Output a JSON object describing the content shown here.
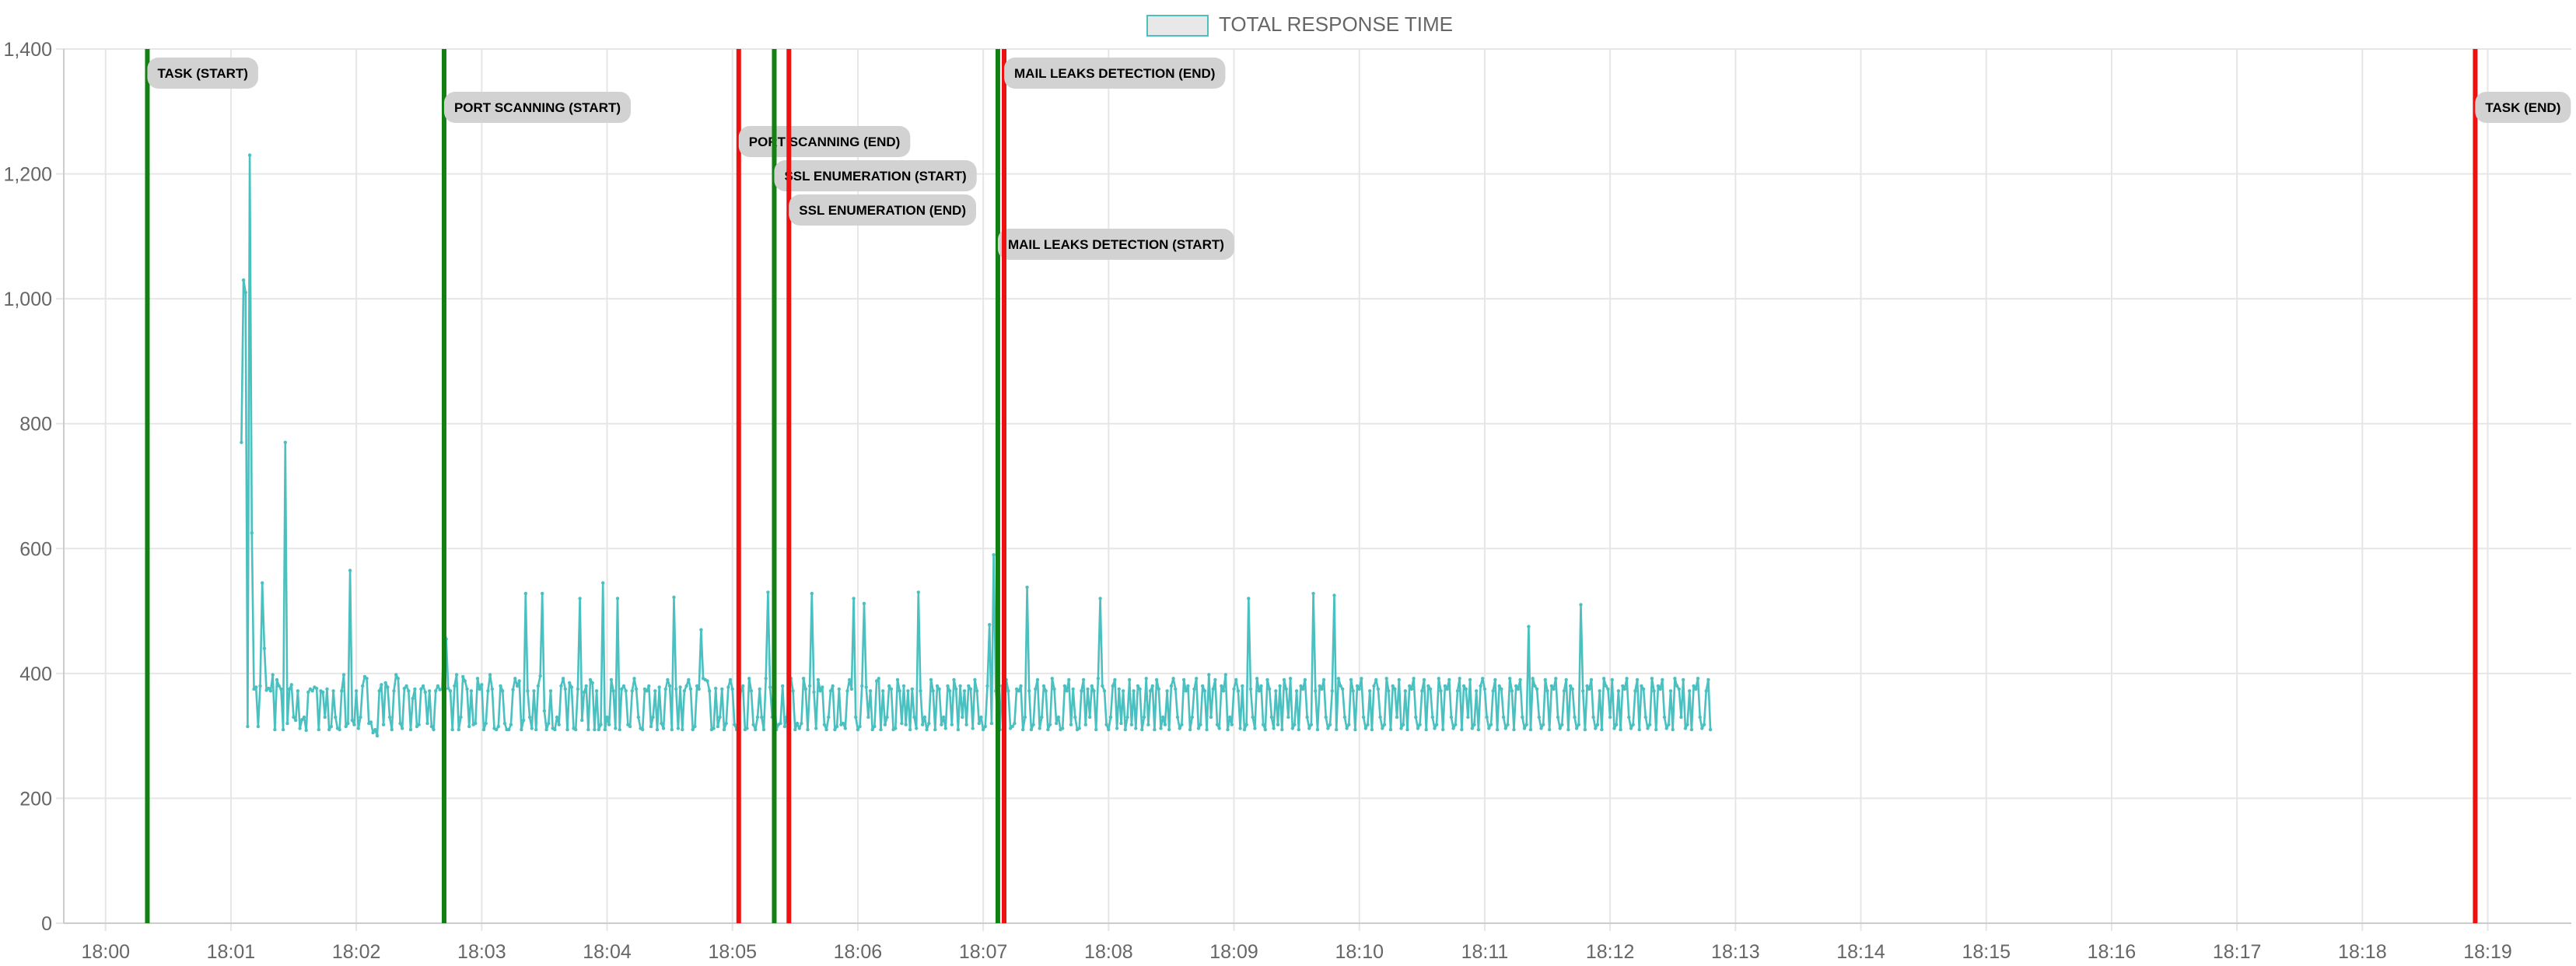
{
  "chart_data": {
    "type": "line",
    "legend": {
      "label": "TOTAL RESPONSE TIME",
      "position": "top-center"
    },
    "colors": {
      "series_line": "#4bc0c0",
      "series_fill": "#e8e8e8",
      "start_marker": "#128012",
      "end_marker": "#ee1111",
      "label_bg": "#d2d2d2",
      "grid": "#e6e6e6"
    },
    "x_axis": {
      "type": "time",
      "range": [
        "17:59:40",
        "18:19:40"
      ],
      "ticks": [
        "18:00",
        "18:01",
        "18:02",
        "18:03",
        "18:04",
        "18:05",
        "18:06",
        "18:07",
        "18:08",
        "18:09",
        "18:10",
        "18:11",
        "18:12",
        "18:13",
        "18:14",
        "18:15",
        "18:16",
        "18:17",
        "18:18",
        "18:19"
      ]
    },
    "y_axis": {
      "range": [
        0,
        1400
      ],
      "ticks": [
        "0",
        "200",
        "400",
        "600",
        "800",
        "1,000",
        "1,200",
        "1,400"
      ]
    },
    "grid": true,
    "events": [
      {
        "label": "TASK (START)",
        "time": "18:00:20",
        "kind": "start"
      },
      {
        "label": "PORT SCANNING (START)",
        "time": "18:02:42",
        "kind": "start"
      },
      {
        "label": "PORT SCANNING (END)",
        "time": "18:05:03",
        "kind": "end"
      },
      {
        "label": "SSL ENUMERATION (START)",
        "time": "18:05:20",
        "kind": "start"
      },
      {
        "label": "SSL ENUMERATION (END)",
        "time": "18:05:27",
        "kind": "end"
      },
      {
        "label": "MAIL LEAKS DETECTION (START)",
        "time": "18:07:07",
        "kind": "start"
      },
      {
        "label": "MAIL LEAKS DETECTION (END)",
        "time": "18:07:10",
        "kind": "end"
      },
      {
        "label": "TASK (END)",
        "time": "18:18:54",
        "kind": "end"
      }
    ],
    "series": [
      {
        "start_time": "18:01:05",
        "step_seconds": 1,
        "values": [
          770,
          1030,
          1010,
          315,
          1230,
          625,
          375,
          378,
          315,
          380,
          545,
          440,
          373,
          376,
          372,
          398,
          310,
          390,
          380,
          375,
          310,
          770,
          320,
          375,
          382,
          330,
          325,
          372,
          312,
          326,
          330,
          309,
          370,
          375,
          372,
          378,
          376,
          310,
          372,
          370,
          330,
          375,
          310,
          315,
          372,
          330,
          312,
          310,
          372,
          398,
          315,
          320,
          565,
          325,
          318,
          372,
          312,
          330,
          380,
          395,
          392,
          320,
          322,
          305,
          310,
          300,
          372,
          382,
          318,
          385,
          378,
          330,
          310,
          372,
          398,
          392,
          320,
          312,
          376,
          380,
          372,
          310,
          360,
          375,
          315,
          318,
          375,
          380,
          370,
          320,
          372,
          315,
          310,
          372,
          380,
          374,
          375,
          470,
          455,
          376,
          372,
          310,
          380,
          398,
          310,
          330,
          395,
          388,
          375,
          315,
          372,
          318,
          320,
          392,
          375,
          382,
          310,
          320,
          372,
          398,
          375,
          312,
          310,
          315,
          380,
          372,
          320,
          310,
          310,
          318,
          374,
          392,
          380,
          388,
          310,
          325,
          528,
          372,
          330,
          312,
          372,
          310,
          380,
          396,
          528,
          340,
          310,
          320,
          372,
          312,
          310,
          330,
          318,
          380,
          392,
          375,
          310,
          385,
          378,
          312,
          310,
          375,
          520,
          325,
          370,
          380,
          310,
          390,
          385,
          310,
          372,
          310,
          318,
          545,
          310,
          330,
          318,
          390,
          372,
          312,
          520,
          310,
          375,
          380,
          372,
          318,
          315,
          372,
          392,
          375,
          330,
          312,
          310,
          375,
          372,
          380,
          315,
          330,
          372,
          310,
          378,
          320,
          312,
          375,
          390,
          380,
          310,
          522,
          375,
          312,
          378,
          310,
          372,
          380,
          390,
          375,
          310,
          315,
          380,
          375,
          470,
          392,
          390,
          388,
          372,
          310,
          312,
          376,
          315,
          330,
          375,
          310,
          320,
          378,
          390,
          375,
          318,
          310,
          330,
          372,
          380,
          310,
          312,
          392,
          372,
          318,
          310,
          330,
          375,
          330,
          310,
          392,
          530,
          378,
          330,
          372,
          310,
          318,
          320,
          380,
          315,
          330,
          375,
          392,
          372,
          310,
          320,
          312,
          320,
          392,
          375,
          310,
          380,
          528,
          370,
          312,
          390,
          372,
          378,
          318,
          310,
          330,
          372,
          380,
          310,
          315,
          375,
          318,
          320,
          312,
          372,
          390,
          375,
          520,
          330,
          310,
          315,
          380,
          512,
          378,
          330,
          372,
          310,
          315,
          388,
          392,
          310,
          372,
          318,
          330,
          380,
          375,
          310,
          312,
          390,
          372,
          320,
          380,
          318,
          372,
          310,
          375,
          330,
          312,
          530,
          372,
          318,
          330,
          310,
          320,
          390,
          372,
          310,
          380,
          375,
          318,
          330,
          312,
          380,
          372,
          318,
          390,
          375,
          310,
          380,
          330,
          372,
          318,
          380,
          375,
          312,
          390,
          372,
          320,
          330,
          310,
          315,
          380,
          478,
          320,
          590,
          372,
          330,
          310,
          380,
          318,
          390,
          372,
          312,
          315,
          320,
          375,
          372,
          380,
          310,
          330,
          538,
          372,
          310,
          318,
          375,
          390,
          312,
          330,
          380,
          372,
          310,
          318,
          392,
          375,
          320,
          330,
          310,
          312,
          380,
          372,
          390,
          318,
          375,
          330,
          310,
          312,
          372,
          390,
          318,
          375,
          330,
          380,
          372,
          310,
          392,
          520,
          380,
          372,
          318,
          310,
          330,
          380,
          390,
          312,
          375,
          320,
          372,
          310,
          330,
          390,
          318,
          372,
          312,
          380,
          375,
          310,
          330,
          392,
          318,
          372,
          380,
          310,
          390,
          375,
          312,
          330,
          318,
          372,
          310,
          380,
          392,
          375,
          330,
          312,
          318,
          390,
          372,
          380,
          310,
          330,
          375,
          392,
          312,
          318,
          380,
          372,
          310,
          398,
          330,
          375,
          390,
          318,
          312,
          380,
          372,
          398,
          310,
          330,
          318,
          375,
          390,
          372,
          312,
          380,
          310,
          318,
          520,
          375,
          330,
          312,
          392,
          372,
          380,
          318,
          310,
          390,
          375,
          330,
          312,
          372,
          318,
          380,
          310,
          390,
          375,
          330,
          392,
          312,
          318,
          372,
          310,
          380,
          375,
          390,
          330,
          312,
          318,
          528,
          372,
          310,
          380,
          375,
          390,
          330,
          312,
          318,
          372,
          525,
          310,
          392,
          380,
          375,
          330,
          312,
          318,
          390,
          372,
          310,
          380,
          375,
          392,
          330,
          312,
          318,
          372,
          310,
          380,
          390,
          375,
          330,
          312,
          318,
          392,
          372,
          310,
          380,
          375,
          330,
          390,
          312,
          318,
          372,
          310,
          380,
          375,
          392,
          330,
          312,
          318,
          372,
          390,
          310,
          380,
          375,
          330,
          312,
          318,
          392,
          372,
          310,
          380,
          375,
          390,
          330,
          312,
          318,
          372,
          392,
          310,
          380,
          375,
          330,
          390,
          312,
          318,
          372,
          310,
          380,
          392,
          375,
          330,
          312,
          318,
          372,
          390,
          310,
          380,
          375,
          330,
          312,
          318,
          392,
          372,
          310,
          380,
          375,
          390,
          330,
          312,
          318,
          475,
          310,
          392,
          380,
          375,
          330,
          312,
          318,
          390,
          372,
          310,
          380,
          375,
          392,
          330,
          312,
          318,
          372,
          390,
          310,
          380,
          375,
          330,
          312,
          318,
          510,
          372,
          310,
          380,
          375,
          390,
          330,
          312,
          318,
          372,
          310,
          392,
          380,
          375,
          330,
          390,
          312,
          318,
          372,
          310,
          380,
          375,
          392,
          330,
          312,
          318,
          372,
          390,
          310,
          380,
          375,
          330,
          312,
          318,
          392,
          372,
          310,
          380,
          375,
          390,
          330,
          312,
          318,
          372,
          310,
          392,
          380,
          375,
          330,
          390,
          312,
          318,
          372,
          310,
          380,
          375,
          392,
          330,
          312,
          318,
          372,
          390,
          310
        ]
      }
    ]
  }
}
